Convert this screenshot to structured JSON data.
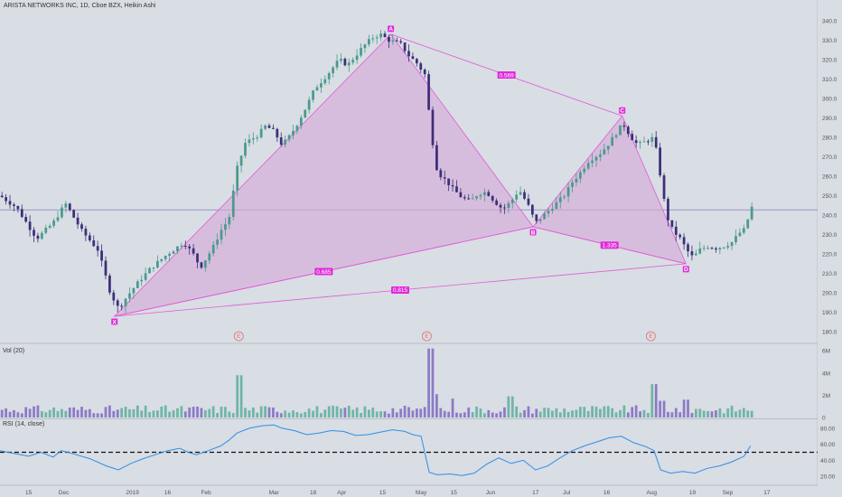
{
  "header": {
    "title": "ARISTA NETWORKS INC, 1D, Cboe BZX, Heikin Ashi"
  },
  "panes": {
    "volume_label": "Vol (20)",
    "rsi_label": "RSI (14, close)"
  },
  "colors": {
    "bull": "#4a9a8c",
    "bear": "#3c2f78",
    "pattern_fill": "#d6a9d8",
    "pattern_line": "#e05ad6",
    "pattern_label_bg": "#e02ad9",
    "rsi_line": "#2e8fe6",
    "vol_bull": "#6fb5a5",
    "vol_bear": "#8c7ac6",
    "price_line": "#6f6fb0",
    "price_tag": "#2d2da0"
  },
  "chart_data": [
    {
      "type": "candlestick",
      "title": "ARISTA NETWORKS INC, 1D, Cboe BZX, Heikin Ashi",
      "ylim": [
        175,
        345
      ],
      "y_ticks": [
        180,
        190,
        200,
        210,
        220,
        230,
        240,
        250,
        260,
        270,
        280,
        290,
        300,
        310,
        320,
        330,
        340
      ],
      "x_ticks": [
        {
          "label": "15",
          "t": 0.035
        },
        {
          "label": "Dec",
          "t": 0.078
        },
        {
          "label": "2019",
          "t": 0.162
        },
        {
          "label": "16",
          "t": 0.205
        },
        {
          "label": "Feb",
          "t": 0.252
        },
        {
          "label": "Mar",
          "t": 0.335
        },
        {
          "label": "18",
          "t": 0.383
        },
        {
          "label": "Apr",
          "t": 0.418
        },
        {
          "label": "15",
          "t": 0.468
        },
        {
          "label": "May",
          "t": 0.515
        },
        {
          "label": "15",
          "t": 0.555
        },
        {
          "label": "Jun",
          "t": 0.6
        },
        {
          "label": "17",
          "t": 0.655
        },
        {
          "label": "Jul",
          "t": 0.693
        },
        {
          "label": "16",
          "t": 0.742
        },
        {
          "label": "Aug",
          "t": 0.797
        },
        {
          "label": "19",
          "t": 0.847
        },
        {
          "label": "Sep",
          "t": 0.89
        },
        {
          "label": "17",
          "t": 0.938
        }
      ],
      "price_path": [
        [
          0.0,
          250
        ],
        [
          0.02,
          244
        ],
        [
          0.045,
          228
        ],
        [
          0.065,
          236
        ],
        [
          0.08,
          246
        ],
        [
          0.1,
          232
        ],
        [
          0.12,
          222
        ],
        [
          0.135,
          200
        ],
        [
          0.145,
          192
        ],
        [
          0.155,
          198
        ],
        [
          0.17,
          206
        ],
        [
          0.185,
          213
        ],
        [
          0.205,
          220
        ],
        [
          0.225,
          226
        ],
        [
          0.238,
          219
        ],
        [
          0.245,
          213
        ],
        [
          0.26,
          223
        ],
        [
          0.27,
          232
        ],
        [
          0.28,
          238
        ],
        [
          0.29,
          264
        ],
        [
          0.3,
          277
        ],
        [
          0.315,
          281
        ],
        [
          0.325,
          286
        ],
        [
          0.335,
          283
        ],
        [
          0.345,
          276
        ],
        [
          0.355,
          281
        ],
        [
          0.365,
          288
        ],
        [
          0.375,
          296
        ],
        [
          0.385,
          305
        ],
        [
          0.4,
          312
        ],
        [
          0.415,
          320
        ],
        [
          0.425,
          317
        ],
        [
          0.435,
          322
        ],
        [
          0.445,
          327
        ],
        [
          0.455,
          331
        ],
        [
          0.465,
          333
        ],
        [
          0.475,
          330
        ],
        [
          0.49,
          328
        ],
        [
          0.5,
          322
        ],
        [
          0.51,
          318
        ],
        [
          0.52,
          312
        ],
        [
          0.527,
          283
        ],
        [
          0.535,
          262
        ],
        [
          0.545,
          258
        ],
        [
          0.555,
          253
        ],
        [
          0.565,
          249
        ],
        [
          0.575,
          247
        ],
        [
          0.585,
          251
        ],
        [
          0.595,
          252
        ],
        [
          0.605,
          247
        ],
        [
          0.615,
          243
        ],
        [
          0.625,
          247
        ],
        [
          0.635,
          253
        ],
        [
          0.645,
          246
        ],
        [
          0.655,
          236
        ],
        [
          0.665,
          240
        ],
        [
          0.675,
          244
        ],
        [
          0.69,
          250
        ],
        [
          0.7,
          257
        ],
        [
          0.71,
          262
        ],
        [
          0.72,
          268
        ],
        [
          0.735,
          272
        ],
        [
          0.745,
          277
        ],
        [
          0.755,
          283
        ],
        [
          0.762,
          287
        ],
        [
          0.772,
          280
        ],
        [
          0.78,
          276
        ],
        [
          0.79,
          278
        ],
        [
          0.8,
          280
        ],
        [
          0.807,
          262
        ],
        [
          0.815,
          240
        ],
        [
          0.823,
          232
        ],
        [
          0.832,
          228
        ],
        [
          0.84,
          222
        ],
        [
          0.848,
          218
        ],
        [
          0.855,
          222
        ],
        [
          0.865,
          224
        ],
        [
          0.875,
          223
        ],
        [
          0.885,
          224
        ],
        [
          0.895,
          226
        ],
        [
          0.905,
          231
        ],
        [
          0.912,
          233
        ],
        [
          0.918,
          244
        ]
      ],
      "current_prices": [
        "246.81",
        "242.72"
      ],
      "harmonic_pattern": {
        "points": [
          {
            "label": "X",
            "t": 0.14,
            "price": 188
          },
          {
            "label": "A",
            "t": 0.478,
            "price": 333
          },
          {
            "label": "B",
            "t": 0.652,
            "price": 234
          },
          {
            "label": "C",
            "t": 0.761,
            "price": 291
          },
          {
            "label": "D",
            "t": 0.839,
            "price": 215
          }
        ],
        "ratios": [
          {
            "label": "0.569",
            "between": "A-C"
          },
          {
            "label": "0.685",
            "between": "X-B"
          },
          {
            "label": "1.335",
            "between": "B-D"
          },
          {
            "label": "0.815",
            "between": "X-D"
          }
        ]
      },
      "events": [
        {
          "label": "E",
          "t": 0.292
        },
        {
          "label": "E",
          "t": 0.522
        },
        {
          "label": "E",
          "t": 0.796
        }
      ]
    },
    {
      "type": "bar",
      "title": "Vol (20)",
      "y_ticks": [
        "0",
        "2M",
        "4M",
        "6M"
      ],
      "ylim": [
        0,
        6.5
      ],
      "spikes": [
        {
          "t": 0.293,
          "value": 3.8
        },
        {
          "t": 0.526,
          "value": 6.2
        },
        {
          "t": 0.535,
          "value": 2.1
        },
        {
          "t": 0.555,
          "value": 1.7
        },
        {
          "t": 0.625,
          "value": 1.9
        },
        {
          "t": 0.8,
          "value": 3.0
        },
        {
          "t": 0.81,
          "value": 1.5
        },
        {
          "t": 0.84,
          "value": 1.6
        }
      ]
    },
    {
      "type": "line",
      "title": "RSI (14, close)",
      "y_ticks": [
        "20.00",
        "40.00",
        "60.00",
        "80.00"
      ],
      "ylim": [
        10,
        90
      ],
      "reference_line": 50,
      "series": [
        [
          0.0,
          52
        ],
        [
          0.02,
          48
        ],
        [
          0.035,
          45
        ],
        [
          0.05,
          50
        ],
        [
          0.065,
          44
        ],
        [
          0.075,
          52
        ],
        [
          0.09,
          48
        ],
        [
          0.11,
          42
        ],
        [
          0.13,
          33
        ],
        [
          0.145,
          28
        ],
        [
          0.16,
          36
        ],
        [
          0.175,
          42
        ],
        [
          0.19,
          47
        ],
        [
          0.205,
          52
        ],
        [
          0.22,
          55
        ],
        [
          0.23,
          50
        ],
        [
          0.24,
          47
        ],
        [
          0.255,
          52
        ],
        [
          0.27,
          58
        ],
        [
          0.28,
          65
        ],
        [
          0.29,
          74
        ],
        [
          0.305,
          80
        ],
        [
          0.32,
          83
        ],
        [
          0.335,
          84
        ],
        [
          0.345,
          80
        ],
        [
          0.36,
          77
        ],
        [
          0.375,
          72
        ],
        [
          0.39,
          74
        ],
        [
          0.405,
          77
        ],
        [
          0.42,
          76
        ],
        [
          0.435,
          71
        ],
        [
          0.45,
          72
        ],
        [
          0.465,
          75
        ],
        [
          0.48,
          78
        ],
        [
          0.495,
          76
        ],
        [
          0.505,
          72
        ],
        [
          0.515,
          70
        ],
        [
          0.525,
          25
        ],
        [
          0.535,
          22
        ],
        [
          0.55,
          23
        ],
        [
          0.565,
          21
        ],
        [
          0.58,
          24
        ],
        [
          0.595,
          35
        ],
        [
          0.61,
          43
        ],
        [
          0.625,
          36
        ],
        [
          0.64,
          40
        ],
        [
          0.655,
          28
        ],
        [
          0.67,
          33
        ],
        [
          0.685,
          43
        ],
        [
          0.7,
          52
        ],
        [
          0.715,
          58
        ],
        [
          0.73,
          63
        ],
        [
          0.745,
          68
        ],
        [
          0.76,
          70
        ],
        [
          0.775,
          62
        ],
        [
          0.79,
          57
        ],
        [
          0.8,
          52
        ],
        [
          0.808,
          28
        ],
        [
          0.82,
          24
        ],
        [
          0.835,
          26
        ],
        [
          0.85,
          24
        ],
        [
          0.865,
          30
        ],
        [
          0.88,
          33
        ],
        [
          0.895,
          38
        ],
        [
          0.91,
          45
        ],
        [
          0.918,
          58
        ]
      ]
    }
  ]
}
